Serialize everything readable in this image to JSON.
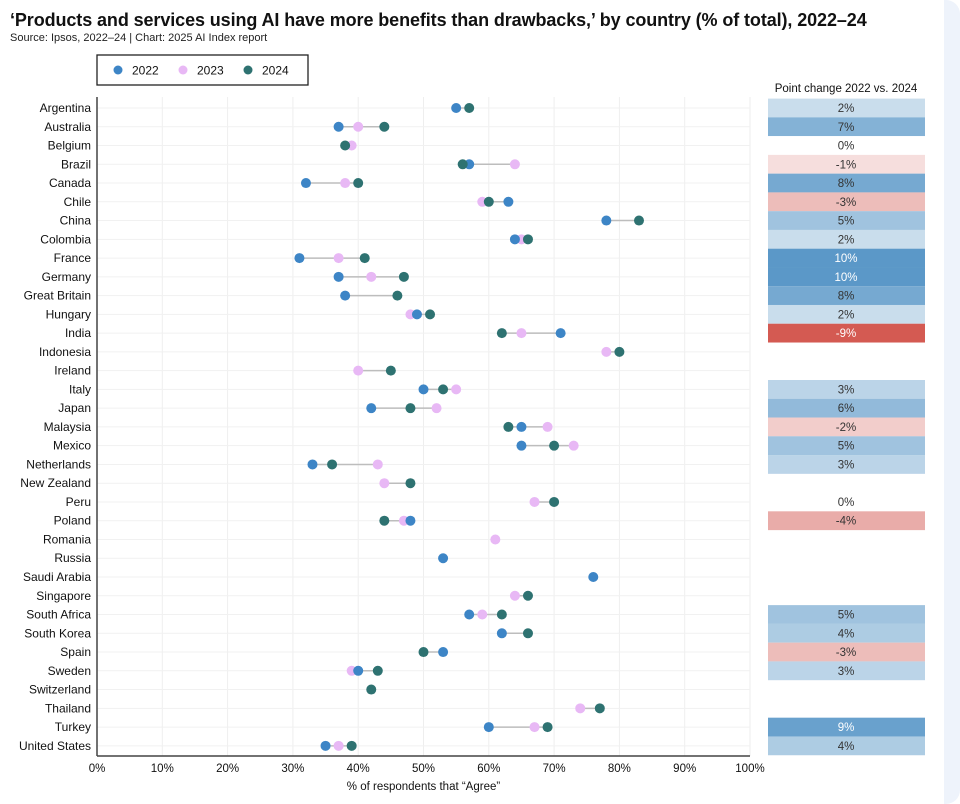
{
  "title": "‘Products and services using AI have more benefits than drawbacks,’ by country (% of total), 2022–24",
  "source": "Source: Ipsos, 2022–24 | Chart: 2025 AI Index report",
  "chart_data": {
    "type": "dot-plot",
    "title": "‘Products and services using AI have more benefits than drawbacks,’ by country (% of total), 2022–24",
    "xlabel": "% of respondents that “Agree”",
    "xlim": [
      0,
      100
    ],
    "xticks": [
      "0%",
      "10%",
      "20%",
      "30%",
      "40%",
      "50%",
      "60%",
      "70%",
      "80%",
      "90%",
      "100%"
    ],
    "grid": true,
    "legend_position": "top-left",
    "series": [
      {
        "name": "2022",
        "color": "#3d85c6"
      },
      {
        "name": "2023",
        "color": "#e8b8f5"
      },
      {
        "name": "2024",
        "color": "#2e7271"
      }
    ],
    "table_header": "Point change 2022 vs. 2024",
    "rows": [
      {
        "country": "Argentina",
        "v2022": 55,
        "v2023": null,
        "v2024": 57,
        "change": 2
      },
      {
        "country": "Australia",
        "v2022": 37,
        "v2023": 40,
        "v2024": 44,
        "change": 7
      },
      {
        "country": "Belgium",
        "v2022": null,
        "v2023": 39,
        "v2024": 38,
        "change": 0
      },
      {
        "country": "Brazil",
        "v2022": 57,
        "v2023": 64,
        "v2024": 56,
        "change": -1
      },
      {
        "country": "Canada",
        "v2022": 32,
        "v2023": 38,
        "v2024": 40,
        "change": 8
      },
      {
        "country": "Chile",
        "v2022": 63,
        "v2023": 59,
        "v2024": 60,
        "change": -3
      },
      {
        "country": "China",
        "v2022": 78,
        "v2023": null,
        "v2024": 83,
        "change": 5
      },
      {
        "country": "Colombia",
        "v2022": 64,
        "v2023": 65,
        "v2024": 66,
        "change": 2
      },
      {
        "country": "France",
        "v2022": 31,
        "v2023": 37,
        "v2024": 41,
        "change": 10
      },
      {
        "country": "Germany",
        "v2022": 37,
        "v2023": 42,
        "v2024": 47,
        "change": 10
      },
      {
        "country": "Great Britain",
        "v2022": 38,
        "v2023": null,
        "v2024": 46,
        "change": 8
      },
      {
        "country": "Hungary",
        "v2022": 49,
        "v2023": 48,
        "v2024": 51,
        "change": 2
      },
      {
        "country": "India",
        "v2022": 71,
        "v2023": 65,
        "v2024": 62,
        "change": -9
      },
      {
        "country": "Indonesia",
        "v2022": null,
        "v2023": 78,
        "v2024": 80,
        "change": null
      },
      {
        "country": "Ireland",
        "v2022": null,
        "v2023": 40,
        "v2024": 45,
        "change": null
      },
      {
        "country": "Italy",
        "v2022": 50,
        "v2023": 55,
        "v2024": 53,
        "change": 3
      },
      {
        "country": "Japan",
        "v2022": 42,
        "v2023": 52,
        "v2024": 48,
        "change": 6
      },
      {
        "country": "Malaysia",
        "v2022": 65,
        "v2023": 69,
        "v2024": 63,
        "change": -2
      },
      {
        "country": "Mexico",
        "v2022": 65,
        "v2023": 73,
        "v2024": 70,
        "change": 5
      },
      {
        "country": "Netherlands",
        "v2022": 33,
        "v2023": 43,
        "v2024": 36,
        "change": 3
      },
      {
        "country": "New Zealand",
        "v2022": null,
        "v2023": 44,
        "v2024": 48,
        "change": null
      },
      {
        "country": "Peru",
        "v2022": null,
        "v2023": 67,
        "v2024": 70,
        "change": 0
      },
      {
        "country": "Poland",
        "v2022": 48,
        "v2023": 47,
        "v2024": 44,
        "change": -4
      },
      {
        "country": "Romania",
        "v2022": null,
        "v2023": 61,
        "v2024": null,
        "change": null
      },
      {
        "country": "Russia",
        "v2022": 53,
        "v2023": null,
        "v2024": null,
        "change": null
      },
      {
        "country": "Saudi Arabia",
        "v2022": 76,
        "v2023": null,
        "v2024": null,
        "change": null
      },
      {
        "country": "Singapore",
        "v2022": null,
        "v2023": 64,
        "v2024": 66,
        "change": null
      },
      {
        "country": "South Africa",
        "v2022": 57,
        "v2023": 59,
        "v2024": 62,
        "change": 5
      },
      {
        "country": "South Korea",
        "v2022": 62,
        "v2023": null,
        "v2024": 66,
        "change": 4
      },
      {
        "country": "Spain",
        "v2022": 53,
        "v2023": null,
        "v2024": 50,
        "change": -3
      },
      {
        "country": "Sweden",
        "v2022": 40,
        "v2023": 39,
        "v2024": 43,
        "change": 3
      },
      {
        "country": "Switzerland",
        "v2022": null,
        "v2023": null,
        "v2024": 42,
        "change": null
      },
      {
        "country": "Thailand",
        "v2022": null,
        "v2023": 74,
        "v2024": 77,
        "change": null
      },
      {
        "country": "Turkey",
        "v2022": 60,
        "v2023": 67,
        "v2024": 69,
        "change": 9
      },
      {
        "country": "United States",
        "v2022": 35,
        "v2023": 37,
        "v2024": 39,
        "change": 4
      }
    ]
  }
}
